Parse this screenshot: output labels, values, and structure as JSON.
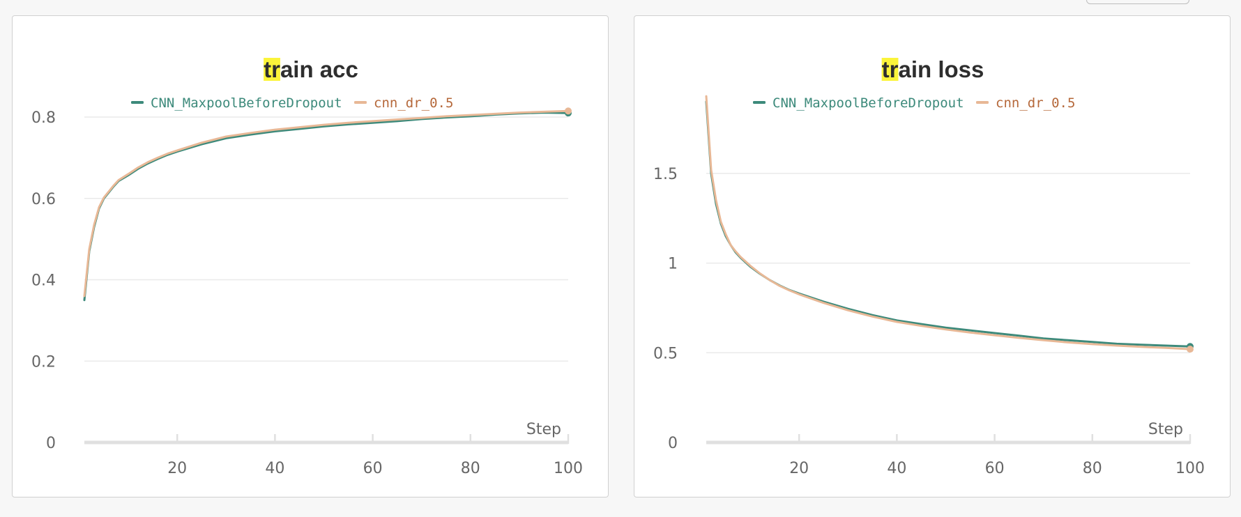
{
  "colors": {
    "series_a": "#3d8a7b",
    "series_b": "#e8b896",
    "series_a_text": "#3d8a7b",
    "series_b_text": "#b5683a",
    "highlight": "#fbf43a"
  },
  "chart_data": [
    {
      "type": "line",
      "title": "train acc",
      "title_highlight": "tr",
      "title_rest": "ain acc",
      "xlabel": "Step",
      "ylabel": "",
      "xlim": [
        1,
        100
      ],
      "ylim": [
        0,
        0.86
      ],
      "yticks": [
        0,
        0.2,
        0.4,
        0.6,
        0.8
      ],
      "ytick_labels": [
        "0",
        "0.2",
        "0.4",
        "0.6",
        "0.8"
      ],
      "xticks": [
        20,
        40,
        60,
        80,
        100
      ],
      "xtick_labels": [
        "20",
        "40",
        "60",
        "80",
        "100"
      ],
      "grid": true,
      "legend_placement": "top-center",
      "series": [
        {
          "name": "CNN_MaxpoolBeforeDropout",
          "x": [
            1,
            2,
            3,
            4,
            5,
            6,
            7,
            8,
            10,
            12,
            14,
            16,
            18,
            20,
            25,
            30,
            35,
            40,
            45,
            50,
            55,
            60,
            65,
            70,
            75,
            80,
            85,
            90,
            95,
            100
          ],
          "y": [
            0.35,
            0.47,
            0.53,
            0.575,
            0.6,
            0.615,
            0.63,
            0.643,
            0.657,
            0.673,
            0.686,
            0.697,
            0.707,
            0.715,
            0.733,
            0.748,
            0.757,
            0.765,
            0.771,
            0.777,
            0.782,
            0.786,
            0.79,
            0.795,
            0.799,
            0.802,
            0.806,
            0.809,
            0.811,
            0.81
          ]
        },
        {
          "name": "cnn_dr_0.5",
          "x": [
            1,
            2,
            3,
            4,
            5,
            6,
            7,
            8,
            10,
            12,
            14,
            16,
            18,
            20,
            25,
            30,
            35,
            40,
            45,
            50,
            55,
            60,
            65,
            70,
            75,
            80,
            85,
            90,
            95,
            100
          ],
          "y": [
            0.36,
            0.475,
            0.535,
            0.578,
            0.602,
            0.617,
            0.632,
            0.645,
            0.66,
            0.676,
            0.689,
            0.7,
            0.71,
            0.718,
            0.737,
            0.752,
            0.761,
            0.769,
            0.775,
            0.781,
            0.786,
            0.79,
            0.794,
            0.798,
            0.802,
            0.805,
            0.808,
            0.811,
            0.813,
            0.815
          ]
        }
      ]
    },
    {
      "type": "line",
      "title": "train loss",
      "title_highlight": "tr",
      "title_rest": "ain loss",
      "xlabel": "Step",
      "ylabel": "",
      "xlim": [
        1,
        100
      ],
      "ylim": [
        0,
        1.95
      ],
      "yticks": [
        0,
        0.5,
        1,
        1.5
      ],
      "ytick_labels": [
        "0",
        "0.5",
        "1",
        "1.5"
      ],
      "xticks": [
        20,
        40,
        60,
        80,
        100
      ],
      "xtick_labels": [
        "20",
        "40",
        "60",
        "80",
        "100"
      ],
      "grid": true,
      "legend_placement": "top-center",
      "series": [
        {
          "name": "CNN_MaxpoolBeforeDropout",
          "x": [
            1,
            2,
            3,
            4,
            5,
            6,
            7,
            8,
            10,
            12,
            14,
            16,
            18,
            20,
            25,
            30,
            35,
            40,
            45,
            50,
            55,
            60,
            65,
            70,
            75,
            80,
            85,
            90,
            95,
            100
          ],
          "y": [
            1.9,
            1.5,
            1.33,
            1.22,
            1.15,
            1.1,
            1.06,
            1.03,
            0.98,
            0.94,
            0.905,
            0.875,
            0.85,
            0.83,
            0.785,
            0.745,
            0.71,
            0.68,
            0.66,
            0.64,
            0.625,
            0.61,
            0.595,
            0.58,
            0.57,
            0.56,
            0.55,
            0.545,
            0.54,
            0.535
          ]
        },
        {
          "name": "cnn_dr_0.5",
          "x": [
            1,
            2,
            3,
            4,
            5,
            6,
            7,
            8,
            10,
            12,
            14,
            16,
            18,
            20,
            25,
            30,
            35,
            40,
            45,
            50,
            55,
            60,
            65,
            70,
            75,
            80,
            85,
            90,
            95,
            100
          ],
          "y": [
            1.93,
            1.52,
            1.35,
            1.23,
            1.16,
            1.1,
            1.065,
            1.035,
            0.985,
            0.942,
            0.905,
            0.873,
            0.848,
            0.826,
            0.778,
            0.737,
            0.702,
            0.672,
            0.65,
            0.63,
            0.613,
            0.598,
            0.583,
            0.57,
            0.558,
            0.548,
            0.54,
            0.533,
            0.527,
            0.52
          ]
        }
      ]
    }
  ]
}
